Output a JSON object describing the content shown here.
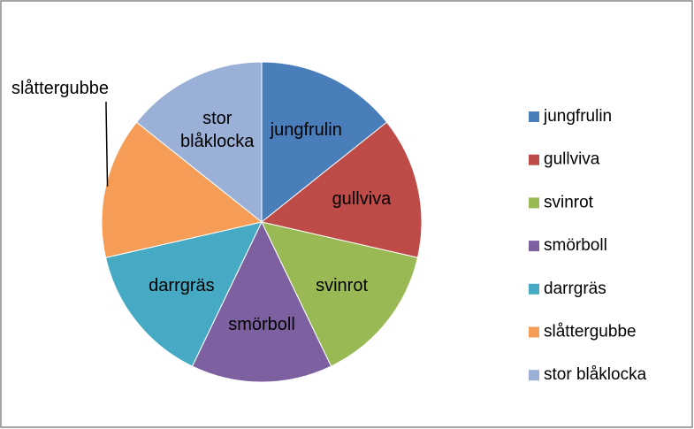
{
  "chart_data": {
    "type": "pie",
    "categories": [
      "jungfrulin",
      "gullviva",
      "svinrot",
      "smörboll",
      "darrgräs",
      "slåttergubbe",
      "stor blåklocka"
    ],
    "values": [
      1,
      1,
      1,
      1,
      1,
      1,
      1
    ],
    "colors": [
      "#4A7EBB",
      "#BE4B48",
      "#98B954",
      "#7D60A0",
      "#46AAC5",
      "#F59D56",
      "#9BB0D7"
    ],
    "legend": "right"
  }
}
